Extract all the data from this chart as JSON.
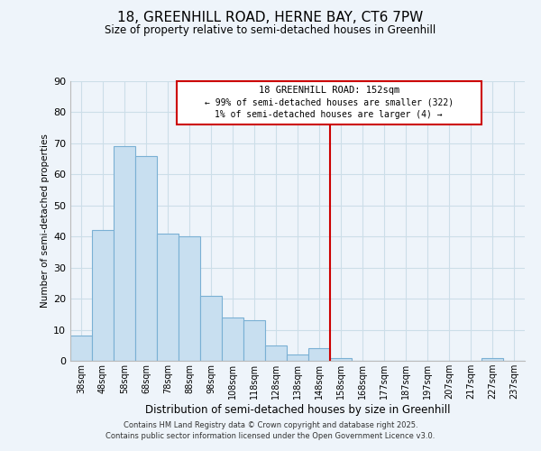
{
  "title_line1": "18, GREENHILL ROAD, HERNE BAY, CT6 7PW",
  "title_line2": "Size of property relative to semi-detached houses in Greenhill",
  "xlabel": "Distribution of semi-detached houses by size in Greenhill",
  "ylabel": "Number of semi-detached properties",
  "bar_labels": [
    "38sqm",
    "48sqm",
    "58sqm",
    "68sqm",
    "78sqm",
    "88sqm",
    "98sqm",
    "108sqm",
    "118sqm",
    "128sqm",
    "138sqm",
    "148sqm",
    "158sqm",
    "168sqm",
    "177sqm",
    "187sqm",
    "197sqm",
    "207sqm",
    "217sqm",
    "227sqm",
    "237sqm"
  ],
  "bar_values": [
    8,
    42,
    69,
    66,
    41,
    40,
    21,
    14,
    13,
    5,
    2,
    4,
    1,
    0,
    0,
    0,
    0,
    0,
    0,
    1,
    0
  ],
  "bar_color": "#c8dff0",
  "bar_edge_color": "#7ab0d4",
  "grid_color": "#ccdee8",
  "background_color": "#eef4fa",
  "vline_color": "#cc0000",
  "annotation_title": "18 GREENHILL ROAD: 152sqm",
  "annotation_line1": "← 99% of semi-detached houses are smaller (322)",
  "annotation_line2": "1% of semi-detached houses are larger (4) →",
  "ylim": [
    0,
    90
  ],
  "yticks": [
    0,
    10,
    20,
    30,
    40,
    50,
    60,
    70,
    80,
    90
  ],
  "footer_line1": "Contains HM Land Registry data © Crown copyright and database right 2025.",
  "footer_line2": "Contains public sector information licensed under the Open Government Licence v3.0."
}
